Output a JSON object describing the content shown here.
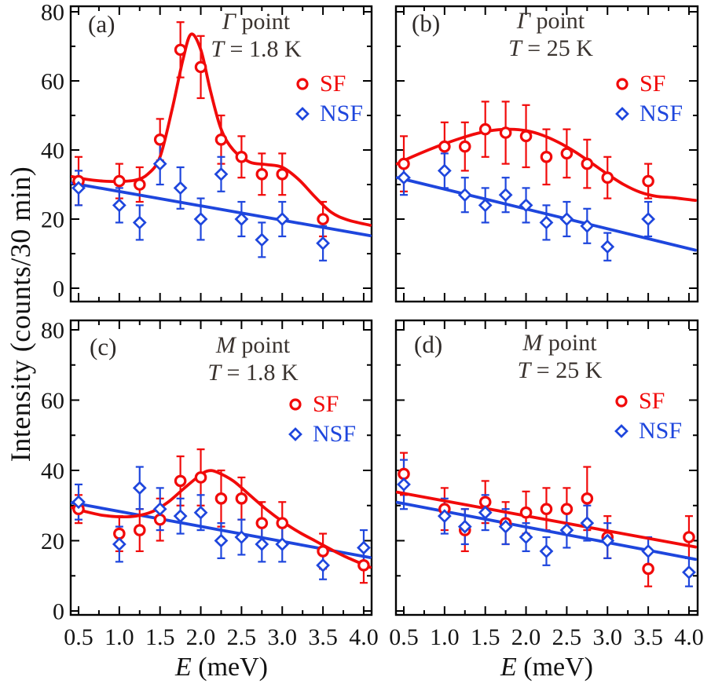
{
  "figure": {
    "ylabel": "Intensity (counts/30 min)",
    "xlabel_var": "E",
    "xlabel_rest": " (meV)",
    "colors": {
      "sf": "#f10a0a",
      "nsf": "#1e46dd",
      "title": "#3a332f",
      "axis": "#000000",
      "tick_text": "#151515"
    },
    "legend": {
      "sf": "SF",
      "nsf": "NSF"
    }
  },
  "axes": {
    "x_ticks": [
      0.5,
      1.0,
      1.5,
      2.0,
      2.5,
      3.0,
      3.5,
      4.0
    ],
    "x_tick_labels": [
      "0.5",
      "1.0",
      "1.5",
      "2.0",
      "2.5",
      "3.0",
      "3.5",
      "4.0"
    ],
    "x_minor_ticks": [
      0.75,
      1.25,
      1.75,
      2.25,
      2.75,
      3.25,
      3.75
    ],
    "y_ticks": [
      0,
      20,
      40,
      60,
      80
    ],
    "y_tick_labels": [
      "0",
      "20",
      "40",
      "60",
      "80"
    ],
    "y_minor_ticks": [
      10,
      30,
      50,
      70
    ],
    "x_range_meV": [
      0.42,
      4.08
    ],
    "y_range_counts": [
      -4,
      82
    ],
    "grid": false
  },
  "chart_data": [
    {
      "panel": "a",
      "letter": "(a)",
      "title_symbol": "Γ",
      "title_rest": " point",
      "subtitle_var": "T",
      "subtitle_rest": " = 1.8 K",
      "type": "scatter",
      "x": [
        0.5,
        1.0,
        1.25,
        1.5,
        1.75,
        2.0,
        2.25,
        2.5,
        2.75,
        3.0,
        3.5
      ],
      "series": [
        {
          "name": "SF",
          "marker": "circle",
          "color": "sf",
          "values": [
            31,
            31,
            30,
            43,
            69,
            64,
            43,
            38,
            33,
            33,
            20
          ],
          "errors": [
            7,
            5,
            5,
            6,
            8,
            9,
            7,
            6,
            6,
            6,
            5
          ],
          "fit": [
            [
              0.42,
              32.3
            ],
            [
              0.6,
              31.5
            ],
            [
              0.8,
              31.0
            ],
            [
              1.0,
              30.9
            ],
            [
              1.2,
              31.3
            ],
            [
              1.35,
              33.0
            ],
            [
              1.5,
              38.0
            ],
            [
              1.65,
              52.0
            ],
            [
              1.78,
              66.0
            ],
            [
              1.88,
              73.5
            ],
            [
              2.0,
              69.0
            ],
            [
              2.12,
              57.0
            ],
            [
              2.25,
              46.0
            ],
            [
              2.4,
              40.0
            ],
            [
              2.6,
              36.5
            ],
            [
              2.8,
              35.8
            ],
            [
              3.0,
              35.0
            ],
            [
              3.2,
              31.5
            ],
            [
              3.4,
              26.5
            ],
            [
              3.6,
              22.0
            ],
            [
              3.8,
              19.8
            ],
            [
              4.08,
              18.2
            ]
          ]
        },
        {
          "name": "NSF",
          "marker": "diamond",
          "color": "nsf",
          "values": [
            29,
            24,
            19,
            36,
            29,
            20,
            33,
            20,
            14,
            20,
            13
          ],
          "errors": [
            5,
            5,
            5,
            6,
            6,
            6,
            5,
            5,
            5,
            5,
            5
          ],
          "fit": [
            [
              0.42,
              30.4
            ],
            [
              4.08,
              15.2
            ]
          ]
        }
      ]
    },
    {
      "panel": "b",
      "letter": "(b)",
      "title_symbol": "Γ",
      "title_rest": " point",
      "subtitle_var": "T",
      "subtitle_rest": " = 25 K",
      "type": "scatter",
      "x": [
        0.5,
        1.0,
        1.25,
        1.5,
        1.75,
        2.0,
        2.25,
        2.5,
        2.75,
        3.0,
        3.5
      ],
      "series": [
        {
          "name": "SF",
          "marker": "circle",
          "color": "sf",
          "values": [
            36,
            41,
            41,
            46,
            45,
            44,
            38,
            39,
            36,
            32,
            31
          ],
          "errors": [
            8,
            7,
            7,
            8,
            9,
            9,
            8,
            7,
            7,
            6,
            5
          ],
          "fit": [
            [
              0.42,
              36.0
            ],
            [
              0.6,
              38.0
            ],
            [
              0.8,
              40.0
            ],
            [
              1.0,
              41.8
            ],
            [
              1.2,
              43.4
            ],
            [
              1.4,
              44.8
            ],
            [
              1.6,
              45.7
            ],
            [
              1.8,
              46.0
            ],
            [
              2.0,
              45.6
            ],
            [
              2.2,
              44.3
            ],
            [
              2.4,
              42.2
            ],
            [
              2.6,
              39.5
            ],
            [
              2.8,
              36.3
            ],
            [
              3.0,
              33.0
            ],
            [
              3.2,
              30.0
            ],
            [
              3.4,
              27.8
            ],
            [
              3.6,
              26.6
            ],
            [
              3.8,
              26.2
            ],
            [
              4.08,
              25.4
            ]
          ]
        },
        {
          "name": "NSF",
          "marker": "diamond",
          "color": "nsf",
          "values": [
            32,
            34,
            27,
            24,
            27,
            24,
            19,
            20,
            18,
            12,
            20
          ],
          "errors": [
            5,
            5,
            5,
            5,
            5,
            5,
            5,
            5,
            5,
            4,
            5
          ],
          "fit": [
            [
              0.42,
              32.0
            ],
            [
              4.08,
              11.0
            ]
          ]
        }
      ]
    },
    {
      "panel": "c",
      "letter": "(c)",
      "title_symbol": "M",
      "title_rest": " point",
      "subtitle_var": "T",
      "subtitle_rest": " = 1.8 K",
      "type": "scatter",
      "x": [
        0.5,
        1.0,
        1.25,
        1.5,
        1.75,
        2.0,
        2.25,
        2.5,
        2.75,
        3.0,
        3.5,
        4.0
      ],
      "series": [
        {
          "name": "SF",
          "marker": "circle",
          "color": "sf",
          "values": [
            29,
            22,
            23,
            26,
            37,
            38,
            32,
            32,
            25,
            25,
            17,
            13
          ],
          "errors": [
            4,
            5,
            6,
            6,
            7,
            8,
            8,
            6,
            6,
            6,
            5,
            5
          ],
          "fit": [
            [
              0.42,
              29.4
            ],
            [
              0.6,
              28.2
            ],
            [
              0.8,
              27.2
            ],
            [
              1.0,
              26.8
            ],
            [
              1.2,
              27.0
            ],
            [
              1.4,
              28.2
            ],
            [
              1.6,
              31.0
            ],
            [
              1.8,
              35.0
            ],
            [
              2.0,
              38.8
            ],
            [
              2.1,
              39.9
            ],
            [
              2.2,
              39.5
            ],
            [
              2.4,
              37.0
            ],
            [
              2.6,
              33.0
            ],
            [
              2.8,
              29.0
            ],
            [
              3.0,
              25.5
            ],
            [
              3.2,
              22.5
            ],
            [
              3.4,
              20.0
            ],
            [
              3.6,
              17.5
            ],
            [
              3.8,
              15.2
            ],
            [
              4.08,
              12.4
            ]
          ]
        },
        {
          "name": "NSF",
          "marker": "diamond",
          "color": "nsf",
          "values": [
            31,
            19,
            35,
            29,
            27,
            28,
            20,
            21,
            19,
            19,
            13,
            18
          ],
          "errors": [
            5,
            5,
            6,
            6,
            5,
            5,
            5,
            5,
            5,
            5,
            4,
            5
          ],
          "fit": [
            [
              0.42,
              30.8
            ],
            [
              4.08,
              15.2
            ]
          ]
        }
      ]
    },
    {
      "panel": "d",
      "letter": "(d)",
      "title_symbol": "M",
      "title_rest": " point",
      "subtitle_var": "T",
      "subtitle_rest": " = 25 K",
      "type": "scatter",
      "x": [
        0.5,
        1.0,
        1.25,
        1.5,
        1.75,
        2.0,
        2.25,
        2.5,
        2.75,
        3.0,
        3.5,
        4.0
      ],
      "series": [
        {
          "name": "SF",
          "marker": "circle",
          "color": "sf",
          "values": [
            39,
            29,
            23,
            31,
            25,
            28,
            29,
            29,
            32,
            21,
            12,
            21
          ],
          "errors": [
            6,
            6,
            6,
            6,
            6,
            6,
            6,
            6,
            9,
            6,
            5,
            6
          ],
          "fit": [
            [
              0.42,
              33.8
            ],
            [
              4.08,
              18.2
            ]
          ]
        },
        {
          "name": "NSF",
          "marker": "diamond",
          "color": "nsf",
          "values": [
            36,
            27,
            24,
            28,
            24,
            21,
            17,
            23,
            25,
            20,
            17,
            11
          ],
          "errors": [
            7,
            5,
            5,
            5,
            5,
            4,
            4,
            5,
            5,
            5,
            4,
            4
          ],
          "fit": [
            [
              0.42,
              30.9
            ],
            [
              4.08,
              14.7
            ]
          ]
        }
      ]
    }
  ]
}
